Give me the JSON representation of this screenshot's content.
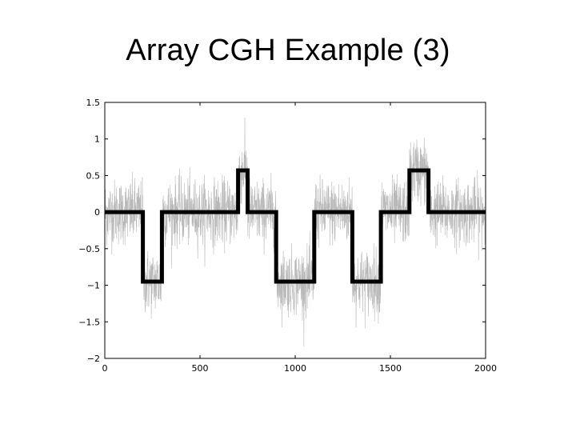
{
  "slide": {
    "title": "Array CGH Example (3)"
  },
  "chart_data": {
    "type": "line",
    "title": "",
    "xlabel": "",
    "ylabel": "",
    "xlim": [
      0,
      2000
    ],
    "ylim": [
      -2,
      1.5
    ],
    "grid": false,
    "x_ticks": [
      0,
      500,
      1000,
      1500,
      2000
    ],
    "x_tick_labels": [
      "0",
      "500",
      "1000",
      "1500",
      "2000"
    ],
    "y_ticks": [
      1.5,
      1,
      0.5,
      0,
      -0.5,
      -1,
      -1.5,
      -2
    ],
    "y_tick_labels": [
      "1.5",
      "1",
      "0.5",
      "0",
      "−0.5",
      "−1",
      "−1.5",
      "−2"
    ],
    "series": [
      {
        "kind": "noisy-signal",
        "color": "#b8b8b8",
        "noise_sd": 0.22,
        "n_points": 2000
      },
      {
        "kind": "segmented-step",
        "color": "#000000",
        "segments": [
          {
            "x0": 0,
            "x1": 200,
            "y": 0
          },
          {
            "x0": 200,
            "x1": 300,
            "y": -0.95
          },
          {
            "x0": 300,
            "x1": 700,
            "y": 0
          },
          {
            "x0": 700,
            "x1": 750,
            "y": 0.57
          },
          {
            "x0": 750,
            "x1": 900,
            "y": 0
          },
          {
            "x0": 900,
            "x1": 1100,
            "y": -0.95
          },
          {
            "x0": 1100,
            "x1": 1300,
            "y": 0
          },
          {
            "x0": 1300,
            "x1": 1450,
            "y": -0.95
          },
          {
            "x0": 1450,
            "x1": 1600,
            "y": 0
          },
          {
            "x0": 1600,
            "x1": 1700,
            "y": 0.57
          },
          {
            "x0": 1700,
            "x1": 2000,
            "y": 0
          }
        ]
      }
    ]
  }
}
